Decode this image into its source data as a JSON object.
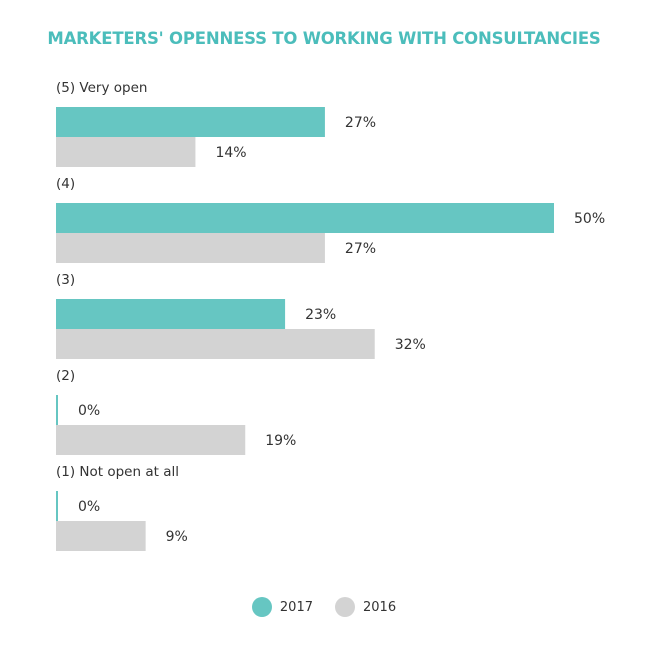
{
  "title": "MARKETERS' OPENNESS TO WORKING WITH CONSULTANCIES",
  "chart_data": {
    "type": "bar",
    "orientation": "horizontal",
    "title": "MARKETERS' OPENNESS TO WORKING WITH CONSULTANCIES",
    "categories": [
      "(5) Very open",
      "(4)",
      "(3)",
      "(2)",
      "(1) Not open at all"
    ],
    "series": [
      {
        "name": "2017",
        "values": [
          27,
          50,
          23,
          0,
          0
        ],
        "color": "#66c6c2"
      },
      {
        "name": "2016",
        "values": [
          14,
          27,
          32,
          19,
          9
        ],
        "color": "#d3d3d3"
      }
    ],
    "value_labels": {
      "2017": [
        "27%",
        "50%",
        "23%",
        "0%",
        "0%"
      ],
      "2016": [
        "14%",
        "27%",
        "32%",
        "19%",
        "9%"
      ]
    },
    "unit": "%",
    "xlim": [
      0,
      50
    ],
    "grid": false,
    "legend_position": "bottom-center"
  },
  "legend": [
    {
      "label": "2017",
      "color": "#66c6c2"
    },
    {
      "label": "2016",
      "color": "#d3d3d3"
    }
  ]
}
